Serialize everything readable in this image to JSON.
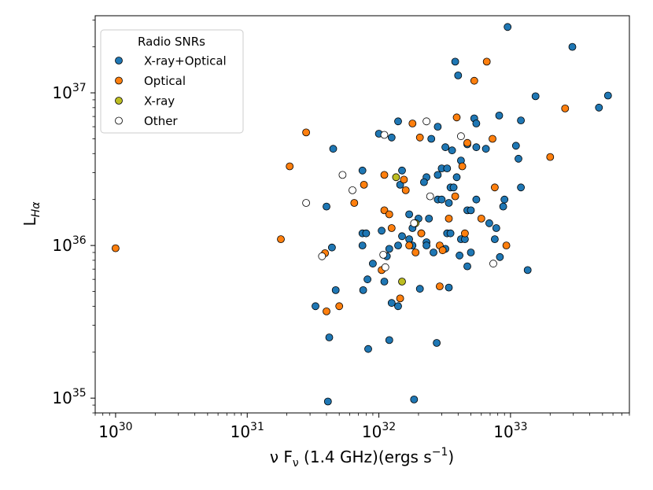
{
  "chart_data": {
    "type": "scatter",
    "xscale": "log",
    "yscale": "log",
    "xlim": [
      7e+29,
      8e+33
    ],
    "ylim": [
      8e+34,
      3.2e+37
    ],
    "xticks": [
      1e+30,
      1e+31,
      1e+32,
      1e+33
    ],
    "xtick_labels": [
      {
        "base": "10",
        "exp": "30"
      },
      {
        "base": "10",
        "exp": "31"
      },
      {
        "base": "10",
        "exp": "32"
      },
      {
        "base": "10",
        "exp": "33"
      }
    ],
    "yticks": [
      1e+35,
      1e+36,
      1e+37
    ],
    "ytick_labels": [
      {
        "base": "10",
        "exp": "35"
      },
      {
        "base": "10",
        "exp": "36"
      },
      {
        "base": "10",
        "exp": "37"
      }
    ],
    "xlabel": {
      "pre": "ν F",
      "sub": "ν",
      "mid": " (1.4 GHz)(ergs s",
      "sup": "−1",
      "post": ")"
    },
    "ylabel": {
      "main": "L",
      "sub": "Hα"
    },
    "legend": {
      "title": "Radio SNRs",
      "position": "upper-left"
    },
    "series": [
      {
        "name": "X-ray+Optical",
        "color": "#1f77b4",
        "points": [
          [
            9.5e+32,
            2.7e+37
          ],
          [
            2.95e+33,
            2e+37
          ],
          [
            3.8e+32,
            1.6e+37
          ],
          [
            4e+32,
            1.3e+37
          ],
          [
            1.55e+33,
            9.5e+36
          ],
          [
            5.5e+33,
            9.6e+36
          ],
          [
            4.7e+33,
            8e+36
          ],
          [
            8.2e+32,
            7.1e+36
          ],
          [
            1.2e+33,
            6.6e+36
          ],
          [
            1.4e+32,
            6.5e+36
          ],
          [
            5.3e+32,
            6.8e+36
          ],
          [
            5.5e+32,
            6.3e+36
          ],
          [
            2.8e+32,
            6e+36
          ],
          [
            1e+32,
            5.4e+36
          ],
          [
            1.25e+32,
            5.1e+36
          ],
          [
            2.5e+32,
            5e+36
          ],
          [
            4.7e+32,
            4.6e+36
          ],
          [
            5.5e+32,
            4.4e+36
          ],
          [
            6.5e+32,
            4.3e+36
          ],
          [
            1.1e+33,
            4.5e+36
          ],
          [
            4.5e+31,
            4.3e+36
          ],
          [
            3.2e+32,
            4.4e+36
          ],
          [
            3.6e+32,
            4.2e+36
          ],
          [
            4.2e+32,
            3.6e+36
          ],
          [
            1.15e+33,
            3.7e+36
          ],
          [
            7.5e+31,
            3.1e+36
          ],
          [
            1.5e+32,
            3.1e+36
          ],
          [
            3e+32,
            3.2e+36
          ],
          [
            3.3e+32,
            3.2e+36
          ],
          [
            2.3e+32,
            2.8e+36
          ],
          [
            2.8e+32,
            2.9e+36
          ],
          [
            3.9e+32,
            2.8e+36
          ],
          [
            1.45e+32,
            2.5e+36
          ],
          [
            2.2e+32,
            2.6e+36
          ],
          [
            3.5e+32,
            2.4e+36
          ],
          [
            3.7e+32,
            2.4e+36
          ],
          [
            1.2e+33,
            2.4e+36
          ],
          [
            2.8e+32,
            2e+36
          ],
          [
            3e+32,
            2e+36
          ],
          [
            5.5e+32,
            2e+36
          ],
          [
            9e+32,
            2e+36
          ],
          [
            3.4e+32,
            1.9e+36
          ],
          [
            4.7e+32,
            1.7e+36
          ],
          [
            5e+32,
            1.7e+36
          ],
          [
            8.8e+32,
            1.8e+36
          ],
          [
            1.7e+32,
            1.6e+36
          ],
          [
            2e+32,
            1.5e+36
          ],
          [
            2.4e+32,
            1.5e+36
          ],
          [
            6.9e+32,
            1.4e+36
          ],
          [
            4e+31,
            1.8e+36
          ],
          [
            1.8e+32,
            1.3e+36
          ],
          [
            7.8e+32,
            1.3e+36
          ],
          [
            1.7e+32,
            1.1e+36
          ],
          [
            7.5e+31,
            1.2e+36
          ],
          [
            8e+31,
            1.2e+36
          ],
          [
            1.05e+32,
            1.25e+36
          ],
          [
            1.5e+32,
            1.15e+36
          ],
          [
            2.1e+32,
            1.2e+36
          ],
          [
            3.3e+32,
            1.2e+36
          ],
          [
            3.5e+32,
            1.2e+36
          ],
          [
            4.2e+32,
            1.1e+36
          ],
          [
            4.5e+32,
            1.1e+36
          ],
          [
            2.3e+32,
            1.05e+36
          ],
          [
            7.5e+31,
            1e+36
          ],
          [
            1.2e+32,
            9.5e+35
          ],
          [
            1.8e+32,
            1e+36
          ],
          [
            2.3e+32,
            1e+36
          ],
          [
            2.6e+32,
            9e+35
          ],
          [
            3.2e+32,
            9.5e+35
          ],
          [
            5e+32,
            9e+35
          ],
          [
            7.6e+32,
            1.1e+36
          ],
          [
            4.4e+31,
            9.7e+35
          ],
          [
            1.4e+32,
            1e+36
          ],
          [
            4.1e+32,
            8.6e+35
          ],
          [
            8.3e+32,
            8.4e+35
          ],
          [
            9e+31,
            7.6e+35
          ],
          [
            1.15e+32,
            8.5e+35
          ],
          [
            4.7e+32,
            7.3e+35
          ],
          [
            1.35e+33,
            6.9e+35
          ],
          [
            8.2e+31,
            6e+35
          ],
          [
            7.6e+31,
            5.1e+35
          ],
          [
            1.1e+32,
            5.8e+35
          ],
          [
            2.05e+32,
            5.2e+35
          ],
          [
            3.4e+32,
            5.3e+35
          ],
          [
            4.7e+31,
            5.1e+35
          ],
          [
            1.25e+32,
            4.2e+35
          ],
          [
            1.4e+32,
            4e+35
          ],
          [
            3.3e+31,
            4e+35
          ],
          [
            4.2e+31,
            2.5e+35
          ],
          [
            8.3e+31,
            2.1e+35
          ],
          [
            1.2e+32,
            2.4e+35
          ],
          [
            2.75e+32,
            2.3e+35
          ],
          [
            4.1e+31,
            9.5e+34
          ],
          [
            1.85e+32,
            9.8e+34
          ]
        ]
      },
      {
        "name": "Optical",
        "color": "#ff7f0e",
        "points": [
          [
            1e+30,
            9.6e+35
          ],
          [
            1.8e+31,
            1.1e+36
          ],
          [
            2.1e+31,
            3.3e+36
          ],
          [
            2.8e+31,
            5.5e+36
          ],
          [
            6.6e+32,
            1.6e+37
          ],
          [
            5.3e+32,
            1.2e+37
          ],
          [
            2.6e+33,
            7.9e+36
          ],
          [
            3.9e+32,
            6.9e+36
          ],
          [
            1.8e+32,
            6.3e+36
          ],
          [
            2.05e+32,
            5.1e+36
          ],
          [
            4.7e+32,
            4.7e+36
          ],
          [
            7.3e+32,
            5e+36
          ],
          [
            2e+33,
            3.8e+36
          ],
          [
            4.3e+32,
            3.3e+36
          ],
          [
            1.1e+32,
            2.9e+36
          ],
          [
            1.55e+32,
            2.7e+36
          ],
          [
            7.7e+31,
            2.5e+36
          ],
          [
            1.6e+32,
            2.3e+36
          ],
          [
            3.8e+32,
            2.1e+36
          ],
          [
            6.5e+31,
            1.9e+36
          ],
          [
            1.1e+32,
            1.7e+36
          ],
          [
            1.2e+32,
            1.6e+36
          ],
          [
            1.25e+32,
            1.3e+36
          ],
          [
            2.1e+32,
            1.2e+36
          ],
          [
            3.4e+32,
            1.5e+36
          ],
          [
            6e+32,
            1.5e+36
          ],
          [
            7.6e+32,
            2.4e+36
          ],
          [
            4.5e+32,
            1.2e+36
          ],
          [
            1.7e+32,
            1e+36
          ],
          [
            2.9e+32,
            1e+36
          ],
          [
            9.3e+32,
            1e+36
          ],
          [
            1.9e+32,
            9e+35
          ],
          [
            3.05e+32,
            9.3e+35
          ],
          [
            3.9e+31,
            8.9e+35
          ],
          [
            1.05e+32,
            6.9e+35
          ],
          [
            2.9e+32,
            5.4e+35
          ],
          [
            1.45e+32,
            4.5e+35
          ],
          [
            5e+31,
            4e+35
          ],
          [
            4e+31,
            3.7e+35
          ]
        ]
      },
      {
        "name": "X-ray",
        "color": "#bcbd22",
        "points": [
          [
            1.35e+32,
            2.8e+36
          ],
          [
            1.9e+32,
            1.4e+36
          ],
          [
            1.5e+32,
            5.8e+35
          ]
        ]
      },
      {
        "name": "Other",
        "color": "#ffffff",
        "points": [
          [
            2.3e+32,
            6.5e+36
          ],
          [
            4.2e+32,
            5.2e+36
          ],
          [
            1.1e+32,
            5.3e+36
          ],
          [
            5.3e+31,
            2.9e+36
          ],
          [
            6.3e+31,
            2.3e+36
          ],
          [
            2.45e+32,
            2.1e+36
          ],
          [
            2.8e+31,
            1.9e+36
          ],
          [
            1.85e+32,
            1.4e+36
          ],
          [
            3.7e+31,
            8.5e+35
          ],
          [
            1.08e+32,
            8.7e+35
          ],
          [
            1.12e+32,
            7.2e+35
          ],
          [
            7.4e+32,
            7.6e+35
          ]
        ]
      }
    ]
  }
}
